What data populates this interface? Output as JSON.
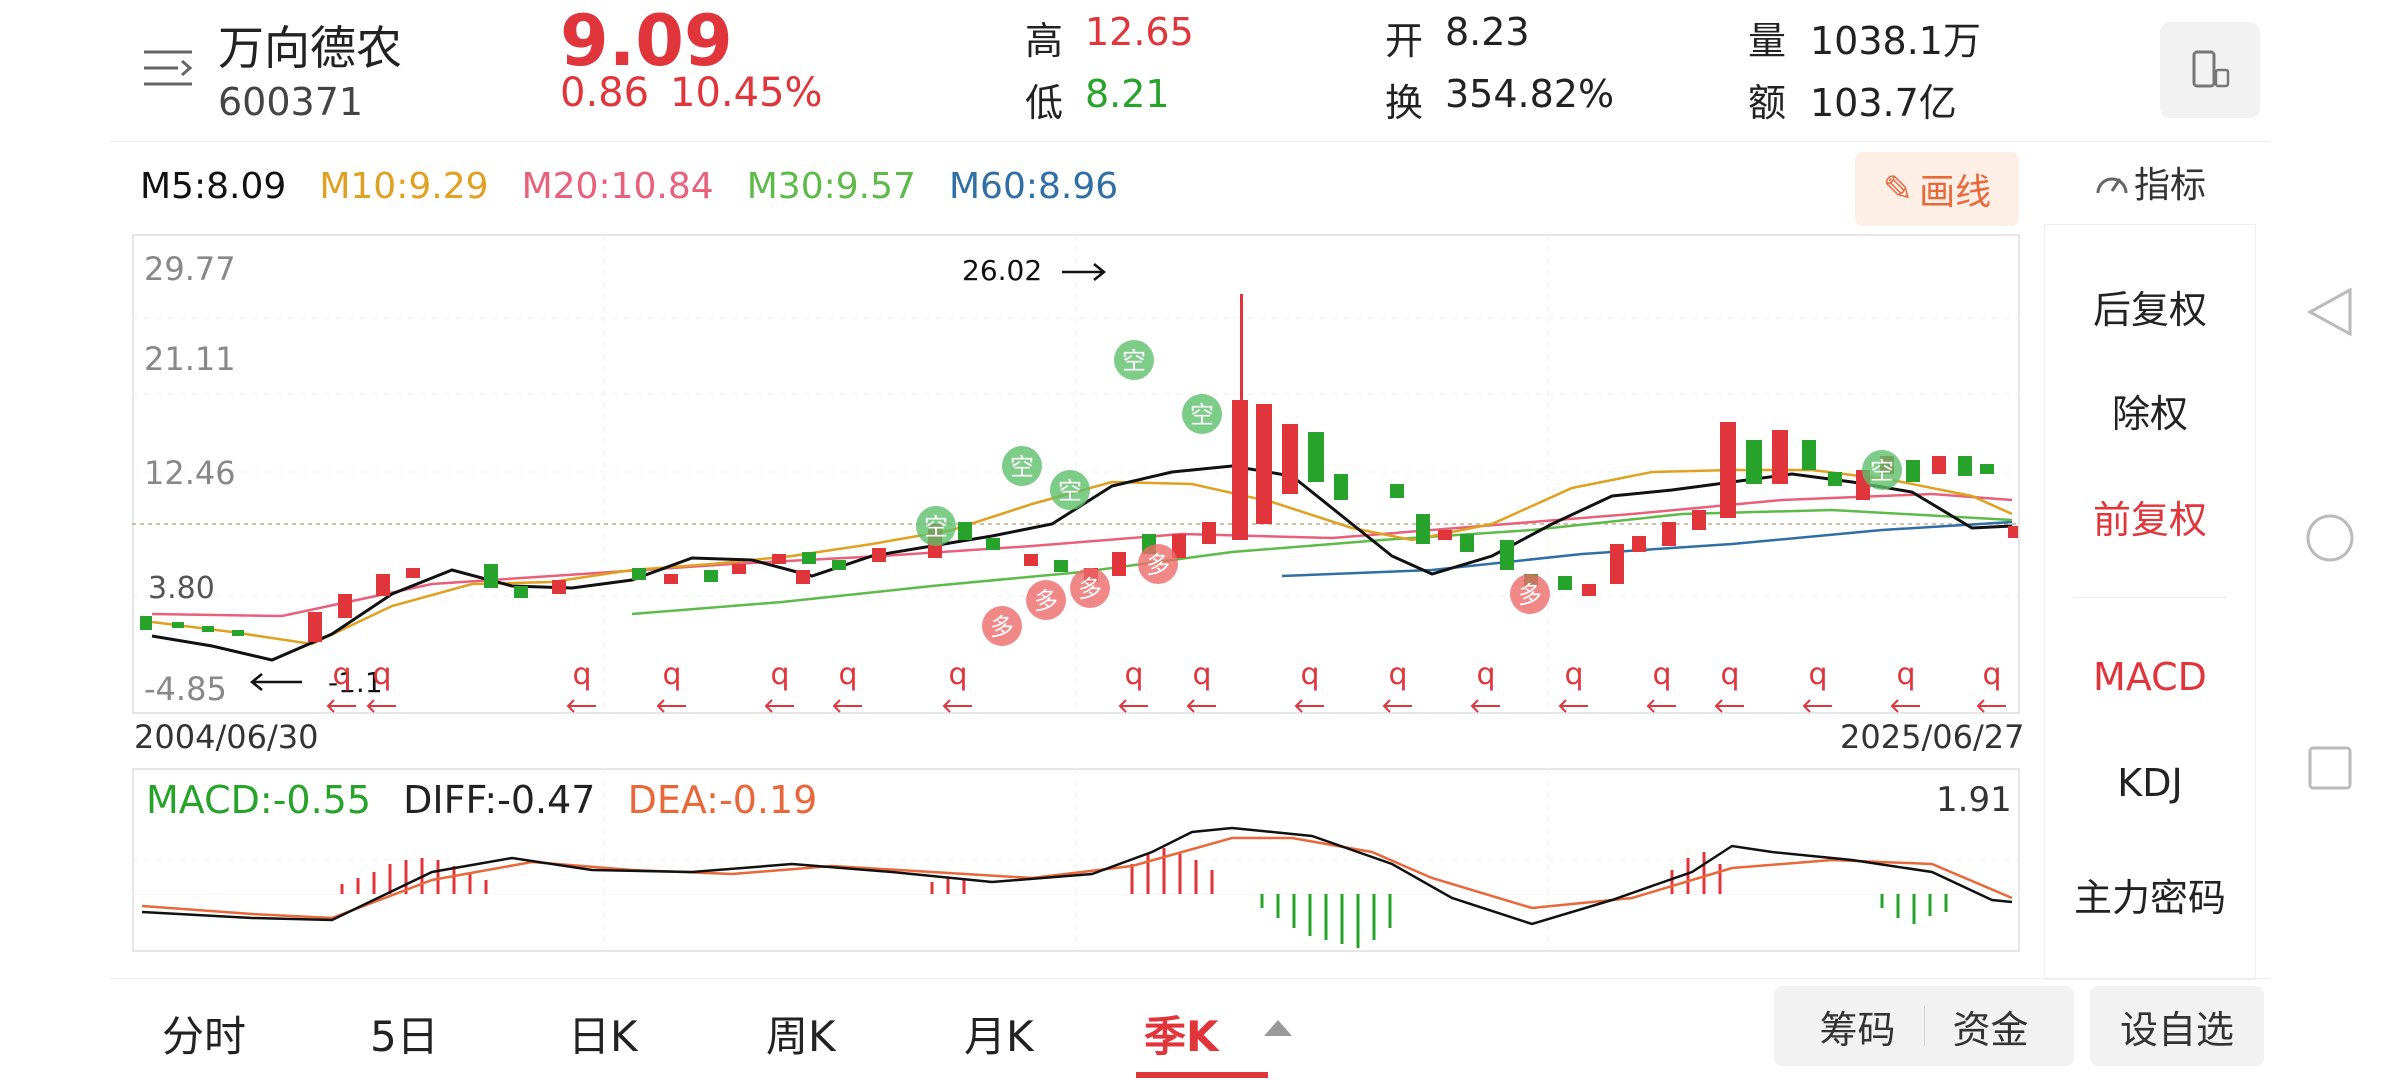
{
  "stock": {
    "name": "万向德农",
    "code": "600371",
    "price": "9.09",
    "change": "0.86",
    "change_pct": "10.45%",
    "high_label": "高",
    "high": "12.65",
    "low_label": "低",
    "low": "8.21",
    "open_label": "开",
    "open": "8.23",
    "turnover_label": "换",
    "turnover": "354.82%",
    "volume_label": "量",
    "volume": "1038.1万",
    "amount_label": "额",
    "amount": "103.7亿"
  },
  "ma": {
    "m5": "M5:8.09",
    "m10": "M10:9.29",
    "m20": "M20:10.84",
    "m30": "M30:9.57",
    "m60": "M60:8.96"
  },
  "draw_button": "画线",
  "indicator_button": "指标",
  "price_axis": {
    "top": "29.77",
    "mid1": "21.11",
    "mid2": "12.46",
    "bottom": "-4.85"
  },
  "peak_label": "26.02",
  "trough_label": "-1.1",
  "left_label": "3.80",
  "date_start": "2004/06/30",
  "date_end": "2025/06/27",
  "macd": {
    "macd": "MACD:-0.55",
    "diff": "DIFF:-0.47",
    "dea": "DEA:-0.19",
    "max": "1.91"
  },
  "side_menu": [
    "后复权",
    "除权",
    "前复权",
    "MACD",
    "KDJ",
    "主力密码"
  ],
  "tabs": [
    "分时",
    "5日",
    "日K",
    "周K",
    "月K",
    "季K"
  ],
  "bottom_buttons": {
    "chips": "筹码",
    "funds": "资金",
    "watch": "设自选"
  },
  "markers": {
    "kong": "空",
    "duo": "多",
    "q": "q"
  },
  "colors": {
    "up": "#e0353b",
    "down": "#27a32b",
    "m10": "#e0a020",
    "m20": "#e8607a",
    "m30": "#5dbb4a",
    "m60": "#2f6fa5"
  }
}
